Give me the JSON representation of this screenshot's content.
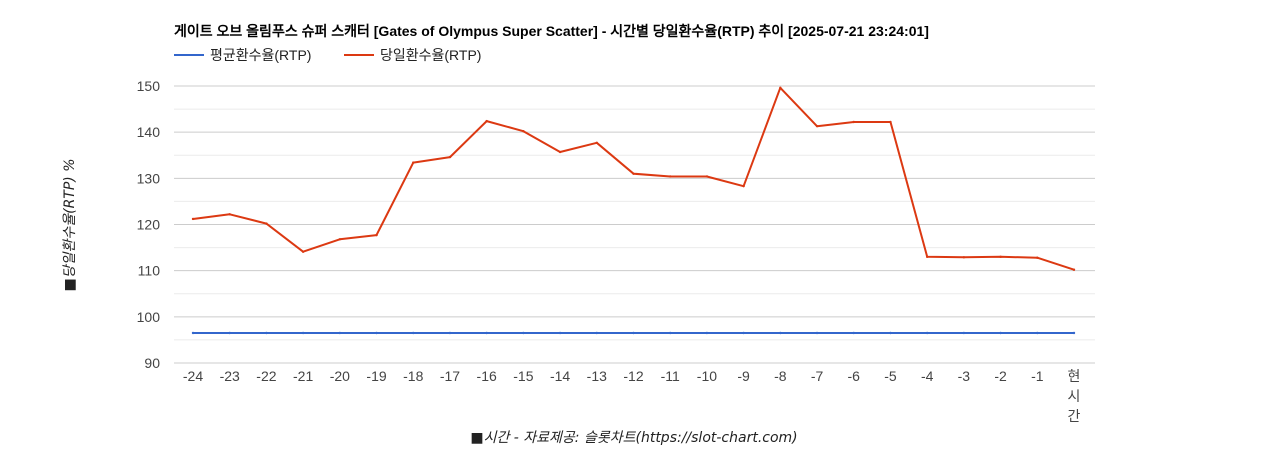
{
  "chart_data": {
    "type": "line",
    "title": "게이트 오브 올림푸스 슈퍼 스캐터 [Gates of Olympus Super Scatter] - 시간별 당일환수율(RTP) 추이 [2025-07-21 23:24:01]",
    "xlabel": "■시간 - 자료제공: 슬롯차트(https://slot-chart.com)",
    "ylabel": "■당일환수율(RTP) %",
    "categories": [
      "-24",
      "-23",
      "-22",
      "-21",
      "-20",
      "-19",
      "-18",
      "-17",
      "-16",
      "-15",
      "-14",
      "-13",
      "-12",
      "-11",
      "-10",
      "-9",
      "-8",
      "-7",
      "-6",
      "-5",
      "-4",
      "-3",
      "-2",
      "-1",
      "현시간"
    ],
    "ylim": [
      90,
      150
    ],
    "yticks": [
      90,
      100,
      110,
      120,
      130,
      140,
      150
    ],
    "grid": true,
    "legend_position": "top-left",
    "series": [
      {
        "name": "평균환수율(RTP)",
        "color": "#3366cc",
        "values": [
          96.5,
          96.5,
          96.5,
          96.5,
          96.5,
          96.5,
          96.5,
          96.5,
          96.5,
          96.5,
          96.5,
          96.5,
          96.5,
          96.5,
          96.5,
          96.5,
          96.5,
          96.5,
          96.5,
          96.5,
          96.5,
          96.5,
          96.5,
          96.5,
          96.5
        ]
      },
      {
        "name": "당일환수율(RTP)",
        "color": "#dc3912",
        "values": [
          121.2,
          122.2,
          120.2,
          114.1,
          116.8,
          117.7,
          133.4,
          134.6,
          142.4,
          140.2,
          135.7,
          137.7,
          131.0,
          130.4,
          130.4,
          128.3,
          149.6,
          141.3,
          142.2,
          142.2,
          113.0,
          112.9,
          113.0,
          112.8,
          110.2
        ]
      }
    ]
  }
}
